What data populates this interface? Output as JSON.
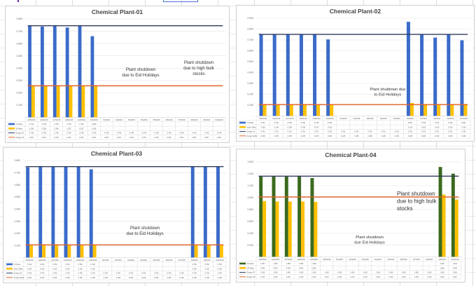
{
  "colors": {
    "blue": "#3a6bc9",
    "yellow": "#ffc000",
    "navy": "#2f3b5c",
    "orange": "#e0622a",
    "green": "#3b6a1f",
    "grid": "#e3e3e3"
  },
  "chart_data": [
    {
      "type": "bar",
      "title": "Chemical Plant-01",
      "categories": [
        "4/25/2018",
        "4/26/2018",
        "4/27/2018",
        "4/28/2018",
        "4/29/2018",
        "4/30/2018",
        "5/1/2018",
        "5/2/2018",
        "5/3/2018",
        "5/4/2018",
        "5/5/2018",
        "5/6/2018",
        "5/7/2018",
        "5/8/2018",
        "5/9/2018",
        "5/10/2018"
      ],
      "ylim": [
        0,
        0.8
      ],
      "ytick_step": 0.1,
      "grid": true,
      "legend": "data-table",
      "series": [
        {
          "name": "U/I Ratio",
          "kind": "bar",
          "color": "blue",
          "values": [
            0.742,
            0.738,
            0.745,
            0.73,
            0.745,
            0.66,
            null,
            null,
            null,
            null,
            null,
            null,
            null,
            null,
            null,
            null
          ]
        },
        {
          "name": "S/I Ratio",
          "kind": "bar",
          "color": "yellow",
          "values": [
            0.256,
            0.256,
            0.256,
            0.257,
            0.257,
            0.256,
            null,
            null,
            null,
            null,
            null,
            null,
            null,
            null,
            null,
            null
          ]
        },
        {
          "name": "Design U/I",
          "kind": "line",
          "color": "navy",
          "values": [
            0.745,
            0.745,
            0.745,
            0.745,
            0.745,
            0.745,
            0.745,
            0.745,
            0.745,
            0.745,
            0.745,
            0.745,
            0.745,
            0.745,
            0.745,
            0.745
          ]
        },
        {
          "name": "Design S/I",
          "kind": "line",
          "color": "orange",
          "values": [
            0.257,
            0.257,
            0.257,
            0.257,
            0.257,
            0.257,
            0.257,
            0.257,
            0.257,
            0.257,
            0.257,
            0.257,
            0.257,
            0.257,
            0.257,
            0.257
          ]
        }
      ],
      "annotations": [
        "Plant shutdown\ndue to Eid Holidays",
        "Plant shutdown\ndue to high bulk\nstocks"
      ]
    },
    {
      "type": "bar",
      "title": "Chemical Plant-02",
      "categories": [
        "4/25/2018",
        "4/26/2018",
        "4/27/2018",
        "4/28/2018",
        "4/29/2018",
        "4/30/2018",
        "5/1/2018",
        "5/2/2018",
        "5/3/2018",
        "5/4/2018",
        "5/5/2018",
        "5/6/2018",
        "5/7/2018",
        "5/8/2018",
        "5/9/2018",
        "5/10/2018"
      ],
      "ylim": [
        0,
        0.9
      ],
      "ytick_step": 0.1,
      "grid": true,
      "legend": "data-table",
      "series": [
        {
          "name": "U/I Ratio",
          "kind": "bar",
          "color": "blue",
          "values": [
            0.751,
            0.75,
            0.75,
            0.752,
            0.749,
            0.705,
            null,
            null,
            null,
            null,
            null,
            0.867,
            0.75,
            0.722,
            0.75,
            0.697
          ]
        },
        {
          "name": "Sulfur Ratio",
          "kind": "bar",
          "color": "yellow",
          "values": [
            0.105,
            0.108,
            0.108,
            0.108,
            0.107,
            0.105,
            null,
            null,
            null,
            null,
            null,
            0.12,
            0.105,
            0.105,
            0.106,
            0.103
          ]
        },
        {
          "name": "Design U/I",
          "kind": "line",
          "color": "navy",
          "values": [
            0.751,
            0.751,
            0.751,
            0.751,
            0.751,
            0.751,
            0.751,
            0.751,
            0.751,
            0.751,
            0.751,
            0.751,
            0.751,
            0.751,
            0.751,
            0.751
          ]
        },
        {
          "name": "Design Sulfur",
          "kind": "line",
          "color": "orange",
          "values": [
            0.105,
            0.105,
            0.105,
            0.105,
            0.105,
            0.105,
            0.105,
            0.105,
            0.105,
            0.105,
            0.105,
            0.105,
            0.105,
            0.105,
            0.105,
            0.105
          ]
        }
      ],
      "annotations": [
        "Plant shutdown  due\nto Eid Holidays"
      ]
    },
    {
      "type": "bar",
      "title": "Chemical Plant-03",
      "categories": [
        "4/25/2018",
        "4/26/2018",
        "4/27/2018",
        "4/28/2018",
        "4/29/2018",
        "4/30/2018",
        "5/1/2018",
        "5/2/2018",
        "5/3/2018",
        "5/4/2018",
        "5/5/2018",
        "5/6/2018",
        "5/7/2018",
        "5/8/2018",
        "5/9/2018",
        "5/10/2018"
      ],
      "ylim": [
        0,
        0.8
      ],
      "ytick_step": 0.1,
      "grid": true,
      "legend": "data-table",
      "series": [
        {
          "name": "U/I Ratio",
          "kind": "bar",
          "color": "blue",
          "values": [
            0.744,
            0.75,
            0.75,
            0.75,
            0.75,
            0.728,
            null,
            null,
            null,
            null,
            null,
            null,
            null,
            0.75,
            0.75,
            0.75
          ]
        },
        {
          "name": "Sulfur Ratio",
          "kind": "bar",
          "color": "yellow",
          "values": [
            0.105,
            0.106,
            0.106,
            0.105,
            0.105,
            0.105,
            null,
            null,
            null,
            null,
            null,
            null,
            null,
            0.105,
            0.105,
            0.105
          ]
        },
        {
          "name": "Design U/I",
          "kind": "line",
          "color": "navy",
          "values": [
            0.75,
            0.75,
            0.75,
            0.75,
            0.75,
            0.75,
            0.75,
            0.75,
            0.75,
            0.75,
            0.75,
            0.75,
            0.75,
            0.75,
            0.75,
            0.75
          ]
        },
        {
          "name": "Design Sulfur",
          "kind": "line",
          "color": "orange",
          "values": [
            0.105,
            0.105,
            0.105,
            0.105,
            0.105,
            0.105,
            0.105,
            0.105,
            0.105,
            0.105,
            0.105,
            0.105,
            0.105,
            0.105,
            0.105,
            0.105
          ]
        }
      ],
      "annotations": [
        "Plant shutdown\ndue to Eid Holidays"
      ]
    },
    {
      "type": "bar",
      "title": "Chemical Plant-04",
      "categories": [
        "4/25/2018",
        "4/26/2018",
        "4/27/2018",
        "4/28/2018",
        "4/29/2018",
        "4/30/2018",
        "5/1/2018",
        "5/2/2018",
        "5/3/2018",
        "5/4/2018",
        "5/5/2018",
        "5/6/2018",
        "5/7/2018",
        "5/8/2018",
        "5/9/2018",
        "5/10/2018"
      ],
      "ylim": [
        0,
        1.6
      ],
      "ytick_step": 0.2,
      "grid": true,
      "legend": "data-table",
      "series": [
        {
          "name": "CF Ratio",
          "kind": "bar",
          "color": "green",
          "values": [
            1.357,
            1.354,
            1.355,
            1.355,
            1.328,
            null,
            null,
            null,
            null,
            null,
            null,
            null,
            null,
            null,
            1.515,
            1.402
          ]
        },
        {
          "name": "CR Ratio",
          "kind": "bar",
          "color": "yellow",
          "values": [
            0.94,
            0.934,
            0.934,
            0.934,
            0.926,
            null,
            null,
            null,
            null,
            null,
            null,
            null,
            null,
            null,
            1.05,
            0.966
          ]
        },
        {
          "name": "Design CF",
          "kind": "line",
          "color": "navy",
          "values": [
            1.36,
            1.36,
            1.36,
            1.36,
            1.36,
            1.36,
            1.36,
            1.36,
            1.36,
            1.36,
            1.36,
            1.36,
            1.36,
            1.36,
            1.36,
            1.36
          ]
        },
        {
          "name": "Design CR",
          "kind": "line",
          "color": "orange",
          "values": [
            1.01,
            1.01,
            1.01,
            1.01,
            1.01,
            1.01,
            1.01,
            1.01,
            1.01,
            1.01,
            1.01,
            1.01,
            1.01,
            1.01,
            1.01,
            1.01
          ]
        }
      ],
      "annotations": [
        "Plant shutdown\ndue to high bulk\nstocks",
        "Plant shutdown\ndue Eid Holidays"
      ]
    }
  ]
}
